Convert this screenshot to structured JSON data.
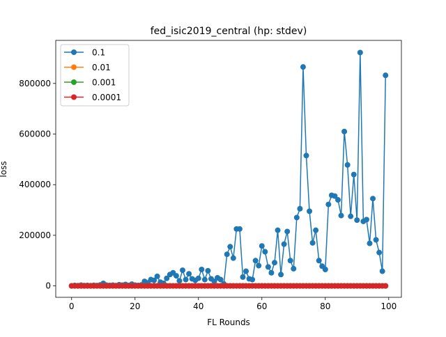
{
  "chart_data": {
    "type": "line",
    "title": "fed_isic2019_central (hp: stdev)",
    "xlabel": "FL Rounds",
    "ylabel": "loss",
    "xlim": [
      -5,
      104
    ],
    "ylim": [
      -45000,
      970000
    ],
    "xticks": [
      0,
      20,
      40,
      60,
      80,
      100
    ],
    "yticks": [
      0,
      200000,
      400000,
      600000,
      800000
    ],
    "x_tick_labels": [
      "0",
      "20",
      "40",
      "60",
      "80",
      "100"
    ],
    "y_tick_labels": [
      "0",
      "200000",
      "400000",
      "600000",
      "800000"
    ],
    "grid": false,
    "legend_position": "top-left",
    "x": [
      0,
      1,
      2,
      3,
      4,
      5,
      6,
      7,
      8,
      9,
      10,
      11,
      12,
      13,
      14,
      15,
      16,
      17,
      18,
      19,
      20,
      21,
      22,
      23,
      24,
      25,
      26,
      27,
      28,
      29,
      30,
      31,
      32,
      33,
      34,
      35,
      36,
      37,
      38,
      39,
      40,
      41,
      42,
      43,
      44,
      45,
      46,
      47,
      48,
      49,
      50,
      51,
      52,
      53,
      54,
      55,
      56,
      57,
      58,
      59,
      60,
      61,
      62,
      63,
      64,
      65,
      66,
      67,
      68,
      69,
      70,
      71,
      72,
      73,
      74,
      75,
      76,
      77,
      78,
      79,
      80,
      81,
      82,
      83,
      84,
      85,
      86,
      87,
      88,
      89,
      90,
      91,
      92,
      93,
      94,
      95,
      96,
      97,
      98,
      99
    ],
    "series": [
      {
        "name": "0.1",
        "color": "#1f77b4",
        "values": [
          500,
          2000,
          1000,
          3000,
          1500,
          2000,
          1000,
          2500,
          1500,
          4000,
          10000,
          3000,
          2000,
          3000,
          1500,
          5000,
          3000,
          6000,
          2000,
          7000,
          3000,
          2000,
          4000,
          18000,
          12000,
          25000,
          22000,
          38000,
          15000,
          10000,
          30000,
          45000,
          52000,
          40000,
          20000,
          62000,
          25000,
          48000,
          28000,
          22000,
          30000,
          65000,
          25000,
          60000,
          28000,
          18000,
          32000,
          25000,
          8000,
          125000,
          155000,
          110000,
          225000,
          225000,
          35000,
          58000,
          28000,
          25000,
          100000,
          80000,
          158000,
          135000,
          75000,
          52000,
          92000,
          220000,
          45000,
          165000,
          215000,
          100000,
          68000,
          270000,
          305000,
          865000,
          515000,
          295000,
          170000,
          220000,
          100000,
          78000,
          65000,
          322000,
          358000,
          355000,
          340000,
          278000,
          610000,
          478000,
          275000,
          440000,
          260000,
          922000,
          255000,
          262000,
          168000,
          345000,
          182000,
          132000,
          58000,
          832000
        ]
      },
      {
        "name": "0.01",
        "color": "#ff7f0e",
        "values": [
          0,
          0,
          0,
          0,
          0,
          0,
          0,
          0,
          0,
          0,
          0,
          0,
          0,
          0,
          0,
          0,
          0,
          0,
          0,
          0,
          0,
          0,
          0,
          0,
          0,
          0,
          0,
          0,
          0,
          0,
          0,
          0,
          0,
          0,
          0,
          0,
          0,
          0,
          0,
          0,
          0,
          0,
          0,
          0,
          0,
          0,
          0,
          0,
          0,
          0,
          0,
          0,
          0,
          0,
          0,
          0,
          0,
          0,
          0,
          0,
          0,
          0,
          0,
          0,
          0,
          0,
          0,
          0,
          0,
          0,
          0,
          0,
          0,
          0,
          0,
          0,
          0,
          0,
          0,
          0,
          0,
          0,
          0,
          0,
          0,
          0,
          0,
          0,
          0,
          0,
          0,
          0,
          0,
          0,
          0,
          0,
          0,
          0,
          0,
          0
        ]
      },
      {
        "name": "0.001",
        "color": "#2ca02c",
        "values": [
          0,
          0,
          0,
          0,
          0,
          0,
          0,
          0,
          0,
          0,
          0,
          0,
          0,
          0,
          0,
          0,
          0,
          0,
          0,
          0,
          0,
          0,
          0,
          0,
          0,
          0,
          0,
          0,
          0,
          0,
          0,
          0,
          0,
          0,
          0,
          0,
          0,
          0,
          0,
          0,
          0,
          0,
          0,
          0,
          0,
          0,
          0,
          0,
          0,
          0,
          0,
          0,
          0,
          0,
          0,
          0,
          0,
          0,
          0,
          0,
          0,
          0,
          0,
          0,
          0,
          0,
          0,
          0,
          0,
          0,
          0,
          0,
          0,
          0,
          0,
          0,
          0,
          0,
          0,
          0,
          0,
          0,
          0,
          0,
          0,
          0,
          0,
          0,
          0,
          0,
          0,
          0,
          0,
          0,
          0,
          0,
          0,
          0,
          0,
          0
        ]
      },
      {
        "name": "0.0001",
        "color": "#d62728",
        "values": [
          0,
          0,
          0,
          0,
          0,
          0,
          0,
          0,
          0,
          0,
          0,
          0,
          0,
          0,
          0,
          0,
          0,
          0,
          0,
          0,
          0,
          0,
          0,
          0,
          0,
          0,
          0,
          0,
          0,
          0,
          0,
          0,
          0,
          0,
          0,
          0,
          0,
          0,
          0,
          0,
          0,
          0,
          0,
          0,
          0,
          0,
          0,
          0,
          0,
          0,
          0,
          0,
          0,
          0,
          0,
          0,
          0,
          0,
          0,
          0,
          0,
          0,
          0,
          0,
          0,
          0,
          0,
          0,
          0,
          0,
          0,
          0,
          0,
          0,
          0,
          0,
          0,
          0,
          0,
          0,
          0,
          0,
          0,
          0,
          0,
          0,
          0,
          0,
          0,
          0,
          0,
          0,
          0,
          0,
          0,
          0,
          0,
          0,
          0,
          0
        ]
      }
    ]
  }
}
